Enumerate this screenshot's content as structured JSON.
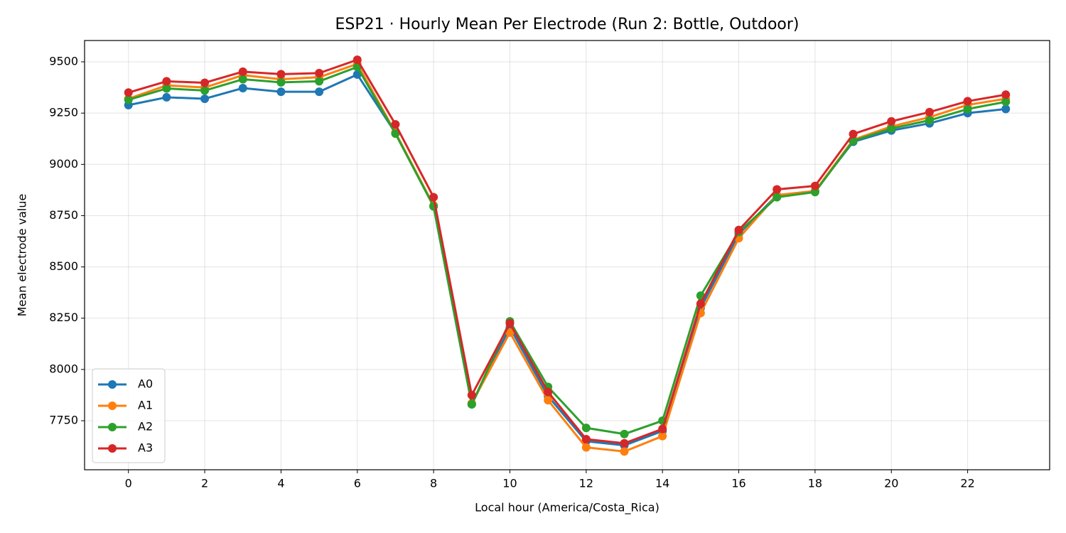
{
  "chart_data": {
    "type": "line",
    "title": "ESP21 · Hourly Mean Per Electrode (Run 2: Bottle, Outdoor)",
    "xlabel": "Local hour (America/Costa_Rica)",
    "ylabel": "Mean electrode value",
    "x": [
      0,
      1,
      2,
      3,
      4,
      5,
      6,
      7,
      8,
      9,
      10,
      11,
      12,
      13,
      14,
      15,
      16,
      17,
      18,
      19,
      20,
      21,
      22,
      23
    ],
    "series": [
      {
        "name": "A0",
        "color": "#1f77b4",
        "values": [
          9289,
          9327,
          9320,
          9372,
          9354,
          9354,
          9438,
          9153,
          8796,
          7830,
          8205,
          7870,
          7650,
          7630,
          7700,
          8300,
          8660,
          8850,
          8870,
          9110,
          9165,
          9200,
          9250,
          9270
        ]
      },
      {
        "name": "A1",
        "color": "#ff7f0e",
        "values": [
          9320,
          9385,
          9375,
          9435,
          9415,
          9425,
          9490,
          9155,
          8800,
          7835,
          8180,
          7850,
          7620,
          7600,
          7675,
          8275,
          8640,
          8850,
          8870,
          9120,
          9185,
          9230,
          9290,
          9320
        ]
      },
      {
        "name": "A2",
        "color": "#2ca02c",
        "values": [
          9315,
          9370,
          9360,
          9415,
          9400,
          9405,
          9475,
          9150,
          8795,
          7830,
          8235,
          7915,
          7715,
          7685,
          7750,
          8360,
          8670,
          8840,
          8865,
          9115,
          9175,
          9215,
          9270,
          9305
        ]
      },
      {
        "name": "A3",
        "color": "#d62728",
        "values": [
          9350,
          9405,
          9398,
          9452,
          9440,
          9445,
          9510,
          9195,
          8840,
          7875,
          8225,
          7890,
          7660,
          7640,
          7710,
          8320,
          8680,
          8878,
          8895,
          9148,
          9210,
          9255,
          9308,
          9340
        ]
      }
    ],
    "xlim": [
      -1.15,
      24.15
    ],
    "ylim": [
      7511,
      9604
    ],
    "xticks": [
      0,
      2,
      4,
      6,
      8,
      10,
      12,
      14,
      16,
      18,
      20,
      22
    ],
    "yticks": [
      7750,
      8000,
      8250,
      8500,
      8750,
      9000,
      9250,
      9500
    ],
    "grid": true,
    "legend": "lower left"
  }
}
